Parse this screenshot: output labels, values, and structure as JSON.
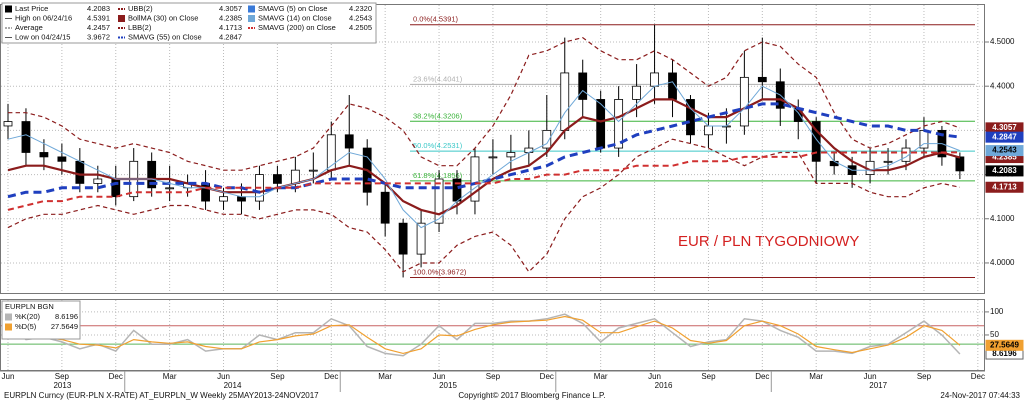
{
  "chart_data": {
    "type": "candlestick",
    "annotation": "EUR / PLN TYGODNIOWY",
    "categories": [
      "Jun",
      null,
      null,
      "Sep",
      null,
      null,
      "Dec",
      null,
      null,
      "Mar",
      null,
      null,
      "Jun",
      null,
      null,
      "Sep",
      null,
      null,
      "Dec",
      null,
      null,
      "Mar",
      null,
      null,
      "Jun",
      null,
      null,
      "Sep",
      null,
      null,
      "Dec",
      null,
      null,
      "Mar",
      null,
      null,
      "Jun",
      null,
      null,
      "Sep",
      null,
      null,
      "Dec",
      null,
      null,
      "Mar",
      null,
      null,
      "Jun",
      null,
      null,
      "Sep",
      null,
      null,
      "Dec"
    ],
    "year_groups": [
      {
        "label": "2013",
        "from": 0,
        "to": 6
      },
      {
        "label": "2014",
        "from": 7,
        "to": 18
      },
      {
        "label": "2015",
        "from": 19,
        "to": 30
      },
      {
        "label": "2016",
        "from": 31,
        "to": 42
      },
      {
        "label": "2017",
        "from": 43,
        "to": 54
      }
    ],
    "open": [
      4.31,
      4.32,
      4.25,
      4.24,
      4.23,
      4.18,
      4.19,
      4.15,
      4.23,
      4.17,
      4.17,
      4.18,
      4.14,
      4.15,
      4.14,
      4.2,
      4.18,
      4.21,
      4.21,
      4.29,
      4.26,
      4.16,
      4.09,
      4.02,
      4.09,
      4.19,
      4.14,
      4.24,
      4.24,
      4.25,
      4.26,
      4.3,
      4.43,
      4.37,
      4.26,
      4.37,
      4.4,
      4.43,
      4.37,
      4.29,
      4.31,
      4.31,
      4.42,
      4.41,
      4.35,
      4.32,
      4.23,
      4.22,
      4.2,
      4.23,
      4.23,
      4.26,
      4.3,
      4.24,
      null
    ],
    "high": [
      4.36,
      4.35,
      4.28,
      4.27,
      4.26,
      4.22,
      4.22,
      4.26,
      4.25,
      4.22,
      4.2,
      4.21,
      4.17,
      4.18,
      4.22,
      4.22,
      4.24,
      4.25,
      4.32,
      4.38,
      4.28,
      4.18,
      4.1,
      4.12,
      4.21,
      4.21,
      4.26,
      4.28,
      4.29,
      4.3,
      4.38,
      4.51,
      4.46,
      4.39,
      4.4,
      4.45,
      4.5391,
      4.46,
      4.38,
      4.34,
      4.35,
      4.48,
      4.51,
      4.44,
      4.37,
      4.33,
      4.25,
      4.24,
      4.26,
      4.26,
      4.28,
      4.33,
      4.31,
      4.25,
      null
    ],
    "low": [
      4.28,
      4.22,
      4.21,
      4.2,
      4.16,
      4.16,
      4.13,
      4.14,
      4.15,
      4.14,
      4.15,
      4.12,
      4.12,
      4.11,
      4.12,
      4.16,
      4.16,
      4.18,
      4.19,
      4.22,
      4.13,
      4.06,
      3.9672,
      3.99,
      4.07,
      4.11,
      4.11,
      4.2,
      4.21,
      4.22,
      4.24,
      4.28,
      4.33,
      4.25,
      4.24,
      4.33,
      4.36,
      4.33,
      4.27,
      4.26,
      4.27,
      4.29,
      4.37,
      4.31,
      4.28,
      4.18,
      4.2,
      4.17,
      4.18,
      4.2,
      4.21,
      4.24,
      4.22,
      4.19,
      null
    ],
    "close": [
      4.32,
      4.25,
      4.24,
      4.23,
      4.18,
      4.19,
      4.15,
      4.23,
      4.17,
      4.17,
      4.18,
      4.14,
      4.15,
      4.14,
      4.2,
      4.18,
      4.21,
      4.21,
      4.29,
      4.26,
      4.16,
      4.09,
      4.02,
      4.09,
      4.19,
      4.14,
      4.24,
      4.24,
      4.25,
      4.26,
      4.3,
      4.43,
      4.37,
      4.26,
      4.37,
      4.4,
      4.43,
      4.37,
      4.29,
      4.31,
      4.31,
      4.42,
      4.41,
      4.35,
      4.32,
      4.23,
      4.22,
      4.2,
      4.23,
      4.23,
      4.26,
      4.3,
      4.24,
      4.2083,
      null
    ],
    "stats": [
      {
        "name": "Last Price",
        "value": 4.2083,
        "color": "#000000",
        "tag": true
      },
      {
        "name": "High on 06/24/16",
        "value": 4.5391
      },
      {
        "name": "Average",
        "value": 4.2457
      },
      {
        "name": "Low on 04/24/15",
        "value": 3.9672
      }
    ],
    "overlays": [
      {
        "name": "UBB(2)",
        "value": 4.3057,
        "color": "#8b1c1c",
        "dash": true,
        "width": 1.2,
        "tag": true,
        "values": [
          4.34,
          4.34,
          4.33,
          4.31,
          4.28,
          4.27,
          4.26,
          4.27,
          4.26,
          4.25,
          4.23,
          4.22,
          4.21,
          4.21,
          4.22,
          4.23,
          4.24,
          4.26,
          4.31,
          4.36,
          4.35,
          4.33,
          4.3,
          4.24,
          4.22,
          4.22,
          4.26,
          4.31,
          4.38,
          4.47,
          4.48,
          4.5,
          4.51,
          4.48,
          4.46,
          4.46,
          4.48,
          4.46,
          4.43,
          4.4,
          4.42,
          4.48,
          4.5,
          4.49,
          4.45,
          4.42,
          4.34,
          4.28,
          4.26,
          4.27,
          4.29,
          4.31,
          4.32,
          4.3057,
          null
        ]
      },
      {
        "name": "BollMA (30) on Close",
        "value": 4.2385,
        "color": "#8b1c1c",
        "dash": false,
        "width": 2.2,
        "tag": true,
        "values": [
          4.21,
          4.22,
          4.22,
          4.21,
          4.2,
          4.2,
          4.19,
          4.19,
          4.19,
          4.19,
          4.18,
          4.17,
          4.16,
          4.16,
          4.16,
          4.17,
          4.18,
          4.19,
          4.21,
          4.22,
          4.21,
          4.18,
          4.14,
          4.12,
          4.11,
          4.13,
          4.16,
          4.19,
          4.21,
          4.22,
          4.25,
          4.3,
          4.33,
          4.32,
          4.33,
          4.35,
          4.37,
          4.37,
          4.35,
          4.33,
          4.33,
          4.35,
          4.37,
          4.37,
          4.35,
          4.3,
          4.26,
          4.23,
          4.21,
          4.21,
          4.22,
          4.24,
          4.25,
          4.2385,
          null
        ]
      },
      {
        "name": "LBB(2)",
        "value": 4.1713,
        "color": "#8b1c1c",
        "dash": true,
        "width": 1.2,
        "tag": true,
        "values": [
          4.08,
          4.1,
          4.11,
          4.11,
          4.12,
          4.13,
          4.12,
          4.11,
          4.12,
          4.13,
          4.13,
          4.12,
          4.11,
          4.11,
          4.1,
          4.11,
          4.12,
          4.12,
          4.11,
          4.08,
          4.07,
          4.03,
          3.98,
          4.0,
          4.0,
          4.04,
          4.06,
          4.07,
          4.04,
          3.98,
          4.02,
          4.1,
          4.15,
          4.17,
          4.2,
          4.24,
          4.26,
          4.28,
          4.27,
          4.26,
          4.24,
          4.22,
          4.24,
          4.25,
          4.25,
          4.18,
          4.18,
          4.18,
          4.16,
          4.15,
          4.15,
          4.17,
          4.18,
          4.1713,
          null
        ]
      },
      {
        "name": "SMAVG (55) on Close",
        "value": 4.2847,
        "color": "#1f3fbf",
        "dash": true,
        "width": 3,
        "tag": true,
        "values": [
          4.15,
          4.16,
          4.16,
          4.17,
          4.17,
          4.17,
          4.18,
          4.18,
          4.18,
          4.18,
          4.18,
          4.18,
          4.17,
          4.17,
          4.16,
          4.17,
          4.17,
          4.18,
          4.19,
          4.19,
          4.19,
          4.18,
          4.17,
          4.17,
          4.17,
          4.17,
          4.18,
          4.19,
          4.2,
          4.21,
          4.22,
          4.24,
          4.25,
          4.26,
          4.27,
          4.29,
          4.3,
          4.31,
          4.32,
          4.33,
          4.34,
          4.35,
          4.36,
          4.36,
          4.35,
          4.34,
          4.33,
          4.32,
          4.31,
          4.31,
          4.3,
          4.3,
          4.29,
          4.2847,
          null
        ]
      },
      {
        "name": "SMAVG (5) on Close",
        "value": {
          "value": 4.232,
          "label": "4.2320"
        },
        "color": "#3a7ad8"
      },
      {
        "name": "SMAVG (14) on Close",
        "value": 4.2543,
        "color": "#6fa8d8",
        "dash": false,
        "width": 1,
        "tag": true,
        "values": [
          4.28,
          4.29,
          4.27,
          4.25,
          4.23,
          4.21,
          4.19,
          4.19,
          4.19,
          4.18,
          4.17,
          4.17,
          4.16,
          4.15,
          4.15,
          4.17,
          4.18,
          4.19,
          4.22,
          4.25,
          4.24,
          4.19,
          4.12,
          4.08,
          4.1,
          4.14,
          4.17,
          4.2,
          4.23,
          4.25,
          4.27,
          4.34,
          4.39,
          4.36,
          4.32,
          4.36,
          4.4,
          4.41,
          4.35,
          4.31,
          4.31,
          4.35,
          4.4,
          4.38,
          4.34,
          4.28,
          4.23,
          4.21,
          4.21,
          4.22,
          4.24,
          4.27,
          4.27,
          4.2543,
          null
        ]
      },
      {
        "name": "SMAVG (200) on Close",
        "value": 4.2505,
        "color": "#d03030",
        "dash": true,
        "width": 2,
        "values": [
          4.12,
          4.13,
          4.14,
          4.14,
          4.15,
          4.15,
          4.15,
          4.16,
          4.16,
          4.16,
          4.16,
          4.17,
          4.17,
          4.17,
          4.17,
          4.17,
          4.17,
          4.18,
          4.18,
          4.18,
          4.18,
          4.18,
          4.18,
          4.18,
          4.18,
          4.18,
          4.18,
          4.18,
          4.19,
          4.19,
          4.2,
          4.2,
          4.21,
          4.21,
          4.21,
          4.22,
          4.22,
          4.22,
          4.23,
          4.23,
          4.23,
          4.24,
          4.24,
          4.24,
          4.24,
          4.25,
          4.25,
          4.25,
          4.25,
          4.25,
          4.25,
          4.25,
          4.25,
          4.2505,
          null
        ]
      }
    ],
    "fib_levels": [
      {
        "value": 4.5391,
        "label": "0.0%(4.5391)",
        "color": "#8b1c1c"
      },
      {
        "value": 4.4041,
        "label": "23.6%(4.4041)",
        "color": "#b0b0b0"
      },
      {
        "value": 4.3206,
        "label": "38.2%(4.3206)",
        "color": "#3cb43c"
      },
      {
        "value": 4.2531,
        "label": "50.0%(4.2531)",
        "color": "#3cc8c8"
      },
      {
        "value": 4.1856,
        "label": "61.8%(4.1856)",
        "color": "#3cb43c"
      },
      {
        "value": 3.9672,
        "label": "100.0%(3.9672)",
        "color": "#8b1c1c"
      }
    ],
    "ylim": [
      3.932,
      4.586
    ],
    "yticks": [
      {
        "value": 4.0,
        "label": "4.0000"
      },
      {
        "value": 4.1,
        "label": "4.1000"
      },
      {
        "value": 4.2,
        "label": "4.2000"
      },
      {
        "value": 4.3,
        "label": "4.3000"
      },
      {
        "value": 4.4,
        "label": "4.4000"
      },
      {
        "value": 4.5,
        "label": "4.5000"
      }
    ],
    "grid": true
  },
  "oscillator": {
    "title": "EURPLN BGN",
    "ylim": [
      -26,
      128
    ],
    "yticks": [
      50,
      100
    ],
    "levels": [
      {
        "value": 70,
        "color": "#c86464"
      },
      {
        "value": 30,
        "color": "#5ab45a"
      }
    ],
    "series": [
      {
        "name": "%K(20)",
        "value": 8.6196,
        "color": "#b5b5b5",
        "values": [
          70,
          40,
          45,
          35,
          20,
          30,
          15,
          60,
          30,
          30,
          40,
          15,
          20,
          20,
          50,
          40,
          55,
          55,
          85,
          70,
          25,
          10,
          5,
          30,
          70,
          40,
          75,
          75,
          80,
          80,
          85,
          95,
          75,
          35,
          65,
          75,
          85,
          55,
          25,
          35,
          40,
          85,
          80,
          60,
          45,
          15,
          15,
          10,
          25,
          30,
          55,
          80,
          50,
          8.6196,
          null
        ]
      },
      {
        "name": "%D(5)",
        "value": 27.5649,
        "color": "#f0a030",
        "values": [
          65,
          50,
          45,
          40,
          30,
          28,
          22,
          40,
          35,
          32,
          35,
          25,
          20,
          20,
          35,
          40,
          48,
          52,
          70,
          72,
          45,
          20,
          10,
          20,
          50,
          48,
          62,
          72,
          78,
          80,
          82,
          90,
          82,
          55,
          55,
          68,
          80,
          65,
          38,
          32,
          38,
          70,
          80,
          70,
          52,
          25,
          18,
          12,
          20,
          28,
          45,
          70,
          60,
          27.5649,
          null
        ]
      }
    ]
  },
  "footer": {
    "left": "EURPLN Curncy (EUR-PLN X-RATE) AT_EURPLN_W Weekly 25MAY2013-24NOV2017",
    "center": "Copyright© 2017 Bloomberg Finance L.P.",
    "right": "24-Nov-2017 07:44:33"
  }
}
